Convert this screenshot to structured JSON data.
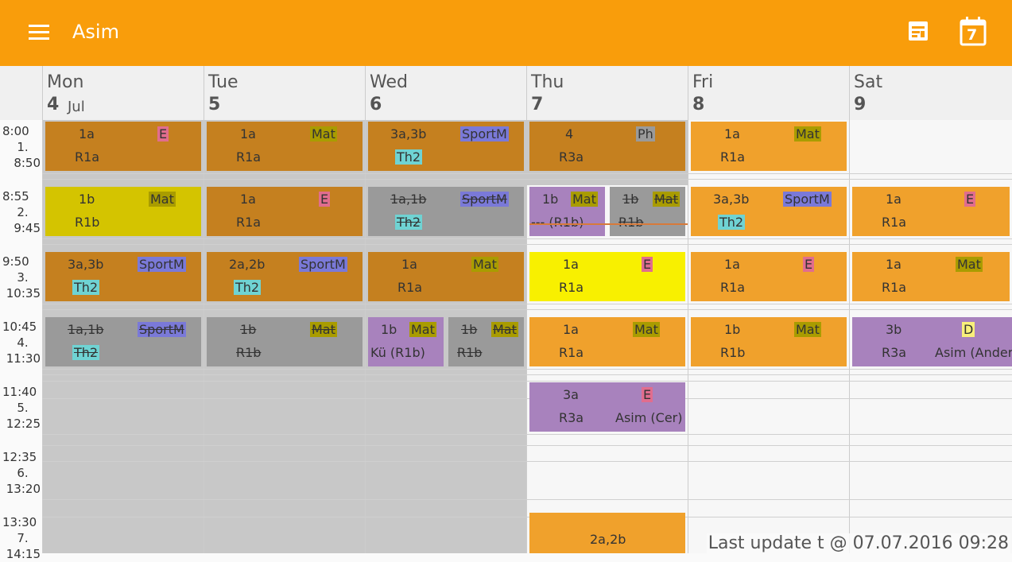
{
  "appbar": {
    "title": "Asim",
    "menu_icon": "menu-icon",
    "icons": [
      "timetable-list-icon",
      "calendar-icon"
    ],
    "calendar_day": "7",
    "color": "#f99d0b"
  },
  "days": [
    {
      "name": "Mon",
      "date": "4",
      "month": "Jul"
    },
    {
      "name": "Tue",
      "date": "5",
      "month": ""
    },
    {
      "name": "Wed",
      "date": "6",
      "month": ""
    },
    {
      "name": "Thu",
      "date": "7",
      "month": ""
    },
    {
      "name": "Fri",
      "date": "8",
      "month": ""
    },
    {
      "name": "Sat",
      "date": "9",
      "month": ""
    }
  ],
  "periods": [
    {
      "start": "8:00",
      "num": "1.",
      "end": "8:50"
    },
    {
      "start": "8:55",
      "num": "2.",
      "end": "9:45"
    },
    {
      "start": "9:50",
      "num": "3.",
      "end": "10:35"
    },
    {
      "start": "10:45",
      "num": "4.",
      "end": "11:30"
    },
    {
      "start": "11:40",
      "num": "5.",
      "end": "12:25"
    },
    {
      "start": "12:35",
      "num": "6.",
      "end": "13:20"
    },
    {
      "start": "13:30",
      "num": "7.",
      "end": "14:15"
    }
  ],
  "colors": {
    "past_orange": "#c5801f",
    "orange": "#f0a12c",
    "olive": "#d4c400",
    "grey": "#9a9a9a",
    "purple": "#a882bd",
    "yellow": "#f8f000",
    "past_bg": "#c8c8c8"
  },
  "lessons": {
    "mon": [
      {
        "cls": "1a",
        "subj": "E",
        "room": "R1a"
      },
      {
        "cls": "1b",
        "subj": "Mat",
        "room": "R1b"
      },
      {
        "cls": "3a,3b",
        "subj": "SportM",
        "room": "Th2"
      },
      {
        "cls": "1a,1b",
        "subj": "SportM",
        "room": "Th2"
      }
    ],
    "tue": [
      {
        "cls": "1a",
        "subj": "Mat",
        "room": "R1a"
      },
      {
        "cls": "1a",
        "subj": "E",
        "room": "R1a"
      },
      {
        "cls": "2a,2b",
        "subj": "SportM",
        "room": "Th2"
      },
      {
        "cls": "1b",
        "subj": "Mat",
        "room": "R1b"
      }
    ],
    "wed": [
      {
        "cls": "3a,3b",
        "subj": "SportM",
        "room": "Th2"
      },
      {
        "cls": "1a,1b",
        "subj": "SportM",
        "room": "Th2"
      },
      {
        "cls": "1a",
        "subj": "Mat",
        "room": "R1a"
      },
      {
        "cls": "1b",
        "subj": "Mat",
        "room": "Kü (R1b)"
      },
      {
        "cls": "1b",
        "subj": "Mat",
        "room": "R1b"
      }
    ],
    "thu": [
      {
        "cls": "4",
        "subj": "Ph",
        "room": "R3a"
      },
      {
        "cls": "1b",
        "subj": "Mat",
        "room": "--- (R1b)"
      },
      {
        "cls": "1b",
        "subj": "Mat",
        "room": "R1b"
      },
      {
        "cls": "1a",
        "subj": "E",
        "room": "R1a"
      },
      {
        "cls": "1a",
        "subj": "Mat",
        "room": "R1a"
      },
      {
        "cls": "3a",
        "subj": "E",
        "room": "R3a",
        "teacher": "Asim (Cer)"
      },
      {
        "cls": "2a,2b"
      }
    ],
    "fri": [
      {
        "cls": "1a",
        "subj": "Mat",
        "room": "R1a"
      },
      {
        "cls": "3a,3b",
        "subj": "SportM",
        "room": "Th2"
      },
      {
        "cls": "1a",
        "subj": "E",
        "room": "R1a"
      },
      {
        "cls": "1b",
        "subj": "Mat",
        "room": "R1b"
      }
    ],
    "sat": [
      {
        "cls": "1a",
        "subj": "E",
        "room": "R1a"
      },
      {
        "cls": "1a",
        "subj": "Mat",
        "room": "R1a"
      },
      {
        "cls": "3b",
        "subj": "D",
        "room": "R3a",
        "teacher": "Asim (Ander"
      }
    ]
  },
  "last_update": "Last update t @ 07.07.2016 09:28"
}
